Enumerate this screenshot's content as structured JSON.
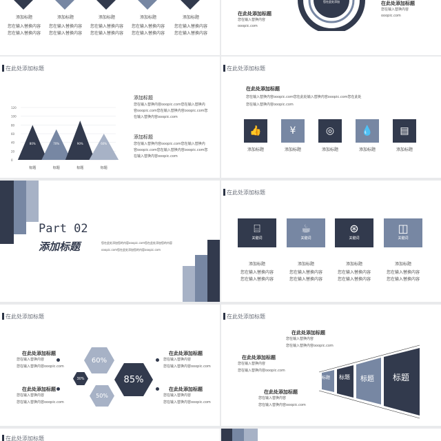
{
  "slide1": {
    "items": [
      {
        "label": "添加标题",
        "desc1": "您在输入替换内容",
        "desc2": "您在输入替换内容"
      },
      {
        "label": "添加标题",
        "desc1": "您在输入替换内容",
        "desc2": "您在输入替换内容"
      },
      {
        "label": "添加标题",
        "desc1": "您在输入替换内容",
        "desc2": "您在输入替换内容"
      },
      {
        "label": "添加标题",
        "desc1": "您在输入替换内容",
        "desc2": "您在输入替换内容"
      },
      {
        "label": "添加标题",
        "desc1": "您在输入替换内容",
        "desc2": "您在输入替换内容"
      }
    ]
  },
  "slide2": {
    "ring_text": "您在此处添加",
    "left_title": "在此处添加标题",
    "left_desc1": "您在输入替换内容",
    "left_desc2": "ooopic.com",
    "right_title": "在此处添加标题",
    "right_desc1": "您在输入替换内容",
    "right_desc2": "ooopic.com"
  },
  "slide3": {
    "header": "在此处添加标题",
    "block1_title": "添加标题",
    "block1_lines": [
      "您在输入替换内容ooopic.com您在输入替换内",
      "容ooopic.com您在输入替换内容ooopic.com您",
      "在输入替换内容ooopic.com"
    ],
    "block2_title": "添加标题",
    "block2_lines": [
      "您在输入替换内容ooopic.com您在输入替换内",
      "容ooopic.com您在输入替换内容ooopic.com您",
      "在输入替换内容ooopic.com"
    ]
  },
  "chart_data": {
    "type": "area",
    "categories": [
      "标题",
      "标题",
      "标题",
      "标题"
    ],
    "values": [
      80,
      70,
      90,
      60
    ],
    "labels": [
      "80%",
      "70%",
      "90%",
      "60%"
    ],
    "yticks": [
      "120",
      "100",
      "80",
      "60",
      "40",
      "20",
      "0"
    ],
    "ylim": [
      0,
      120
    ],
    "colors": [
      "#323a4d",
      "#7787a3",
      "#323a4d",
      "#a7b2c6"
    ]
  },
  "slide4": {
    "header": "在此处添加标题",
    "title": "在此处添加标题",
    "lines": [
      "您在输入替换内容ooopic.com您在此处输入替换内容ooopic.com您在此处",
      "您在输入替换内容ooopic.com"
    ],
    "icons": [
      {
        "name": "thumbs-up-icon",
        "glyph": "👍",
        "label": "添加标题"
      },
      {
        "name": "yen-icon",
        "glyph": "¥",
        "label": "添加标题"
      },
      {
        "name": "target-icon",
        "glyph": "◎",
        "label": "添加标题"
      },
      {
        "name": "drop-icon",
        "glyph": "💧",
        "label": "添加标题"
      },
      {
        "name": "document-icon",
        "glyph": "▤",
        "label": "添加标题"
      }
    ]
  },
  "slide5": {
    "part": "Part 02",
    "subtitle": "添加标题",
    "desc1": "您在此处添加您的内容ooopic.com您在此处添加您的内容",
    "desc2": "ooopic.com您在此处添加您的内容ooopic.com"
  },
  "slide6": {
    "header": "在此处添加标题",
    "cards": [
      {
        "name": "tray-icon",
        "glyph": "⌸",
        "key": "关键词",
        "label": "添加标题",
        "d1": "您在输入替换内容",
        "d2": "您在输入替换内容"
      },
      {
        "name": "cup-icon",
        "glyph": "☕",
        "key": "关键词",
        "label": "添加标题",
        "d1": "您在输入替换内容",
        "d2": "您在输入替换内容"
      },
      {
        "name": "lifebuoy-icon",
        "glyph": "⊛",
        "key": "关键词",
        "label": "添加标题",
        "d1": "您在输入替换内容",
        "d2": "您在输入替换内容"
      },
      {
        "name": "photos-icon",
        "glyph": "◫",
        "key": "关键词",
        "label": "添加标题",
        "d1": "您在输入替换内容",
        "d2": "您在输入替换内容"
      }
    ]
  },
  "slide7": {
    "header": "在此处添加标题",
    "hexes": [
      "60%",
      "30%",
      "85%",
      "50%"
    ],
    "blocks": [
      {
        "title": "在此处添加标题",
        "d1": "您在输入替换内容",
        "d2": "您在输入替换内容ooopic.com"
      },
      {
        "title": "在此处添加标题",
        "d1": "您在输入替换内容",
        "d2": "您在输入替换内容ooopic.com"
      },
      {
        "title": "在此处添加标题",
        "d1": "您在输入替换内容",
        "d2": "您在输入替换内容ooopic.com"
      },
      {
        "title": "在此处添加标题",
        "d1": "您在输入替换内容",
        "d2": "您在输入替换内容ooopic.com"
      }
    ]
  },
  "slide8": {
    "header": "在此处添加标题",
    "steps": [
      "标题",
      "标题",
      "标题",
      "标题"
    ],
    "blocks": [
      {
        "title": "在此处添加标题",
        "d1": "您在输入替换内容",
        "d2": "您在输入替换内容ooopic.com"
      },
      {
        "title": "在此处添加标题",
        "d1": "您在输入替换内容",
        "d2": "您在输入替换内容ooopic.com"
      },
      {
        "title": "在此处添加标题",
        "d1": "您在输入替换内容",
        "d2": "您在输入替换内容ooopic.com"
      }
    ]
  },
  "slide9": {
    "header": "在此处添加标题"
  }
}
